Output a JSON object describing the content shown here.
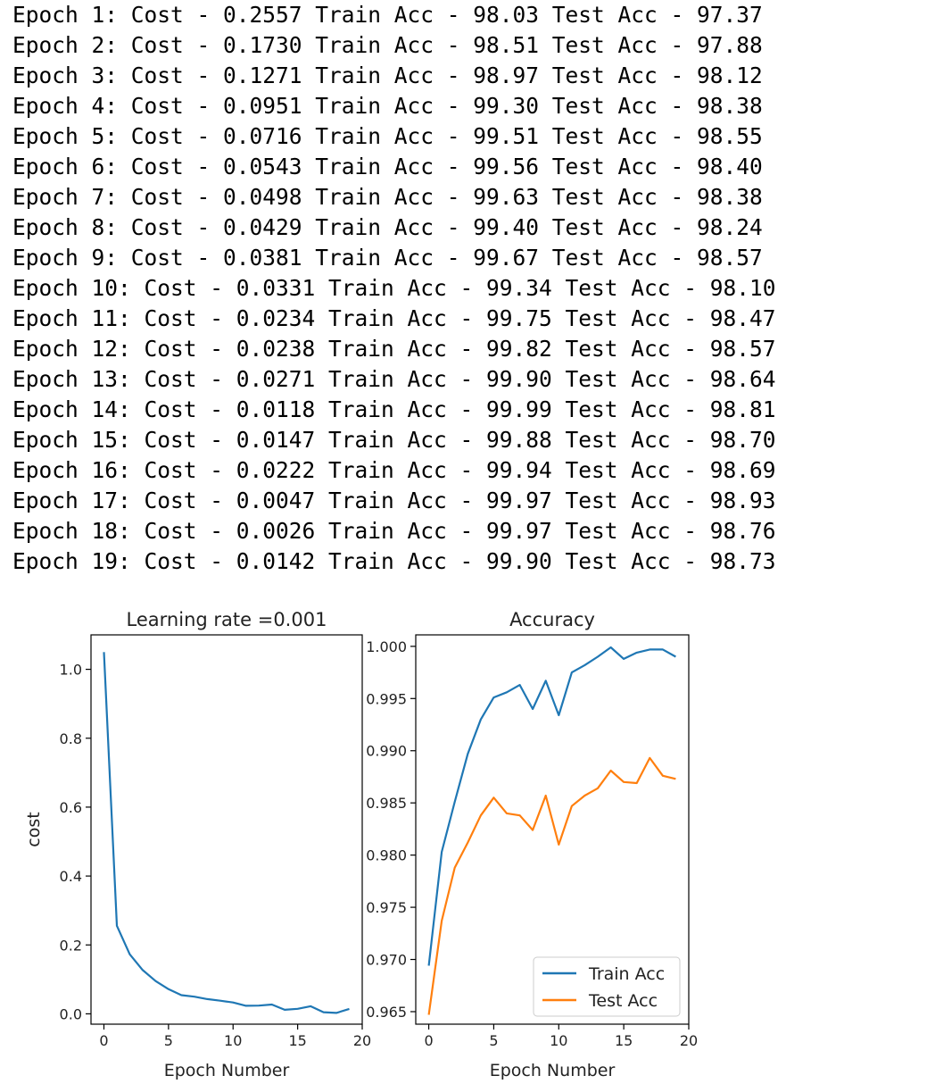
{
  "log": {
    "lines": [
      "Epoch 1: Cost - 0.2557 Train Acc - 98.03 Test Acc - 97.37",
      "Epoch 2: Cost - 0.1730 Train Acc - 98.51 Test Acc - 97.88",
      "Epoch 3: Cost - 0.1271 Train Acc - 98.97 Test Acc - 98.12",
      "Epoch 4: Cost - 0.0951 Train Acc - 99.30 Test Acc - 98.38",
      "Epoch 5: Cost - 0.0716 Train Acc - 99.51 Test Acc - 98.55",
      "Epoch 6: Cost - 0.0543 Train Acc - 99.56 Test Acc - 98.40",
      "Epoch 7: Cost - 0.0498 Train Acc - 99.63 Test Acc - 98.38",
      "Epoch 8: Cost - 0.0429 Train Acc - 99.40 Test Acc - 98.24",
      "Epoch 9: Cost - 0.0381 Train Acc - 99.67 Test Acc - 98.57",
      "Epoch 10: Cost - 0.0331 Train Acc - 99.34 Test Acc - 98.10",
      "Epoch 11: Cost - 0.0234 Train Acc - 99.75 Test Acc - 98.47",
      "Epoch 12: Cost - 0.0238 Train Acc - 99.82 Test Acc - 98.57",
      "Epoch 13: Cost - 0.0271 Train Acc - 99.90 Test Acc - 98.64",
      "Epoch 14: Cost - 0.0118 Train Acc - 99.99 Test Acc - 98.81",
      "Epoch 15: Cost - 0.0147 Train Acc - 99.88 Test Acc - 98.70",
      "Epoch 16: Cost - 0.0222 Train Acc - 99.94 Test Acc - 98.69",
      "Epoch 17: Cost - 0.0047 Train Acc - 99.97 Test Acc - 98.93",
      "Epoch 18: Cost - 0.0026 Train Acc - 99.97 Test Acc - 98.76",
      "Epoch 19: Cost - 0.0142 Train Acc - 99.90 Test Acc - 98.73"
    ]
  },
  "chart_data": [
    {
      "type": "line",
      "title": "Learning rate =0.001",
      "xlabel": "Epoch Number",
      "ylabel": "cost",
      "xlim": [
        -1.0,
        20
      ],
      "ylim": [
        -0.03,
        1.1
      ],
      "xticks": [
        0,
        5,
        10,
        15,
        20
      ],
      "yticks": [
        0.0,
        0.2,
        0.4,
        0.6,
        0.8,
        1.0
      ],
      "ytick_labels": [
        "0.0",
        "0.2",
        "0.4",
        "0.6",
        "0.8",
        "1.0"
      ],
      "grid": false,
      "series": [
        {
          "color": "#1f77b4",
          "x": [
            0,
            1,
            2,
            3,
            4,
            5,
            6,
            7,
            8,
            9,
            10,
            11,
            12,
            13,
            14,
            15,
            16,
            17,
            18,
            19
          ],
          "y": [
            1.05,
            0.2557,
            0.173,
            0.1271,
            0.0951,
            0.0716,
            0.0543,
            0.0498,
            0.0429,
            0.0381,
            0.0331,
            0.0234,
            0.0238,
            0.0271,
            0.0118,
            0.0147,
            0.0222,
            0.0047,
            0.0026,
            0.0142
          ]
        }
      ]
    },
    {
      "type": "line",
      "title": "Accuracy",
      "xlabel": "Epoch Number",
      "ylabel": "",
      "xlim": [
        -1.0,
        20
      ],
      "ylim": [
        0.9638,
        1.0011
      ],
      "xticks": [
        0,
        5,
        10,
        15,
        20
      ],
      "yticks": [
        0.965,
        0.97,
        0.975,
        0.98,
        0.985,
        0.99,
        0.995,
        1.0
      ],
      "ytick_labels": [
        "0.965",
        "0.970",
        "0.975",
        "0.980",
        "0.985",
        "0.990",
        "0.995",
        "1.000"
      ],
      "grid": false,
      "legend_position": "lower-right",
      "series": [
        {
          "name": "Train Acc",
          "color": "#1f77b4",
          "x": [
            0,
            1,
            2,
            3,
            4,
            5,
            6,
            7,
            8,
            9,
            10,
            11,
            12,
            13,
            14,
            15,
            16,
            17,
            18,
            19
          ],
          "y": [
            0.9694,
            0.9803,
            0.9851,
            0.9897,
            0.993,
            0.9951,
            0.9956,
            0.9963,
            0.994,
            0.9967,
            0.9934,
            0.9975,
            0.9982,
            0.999,
            0.9999,
            0.9988,
            0.9994,
            0.9997,
            0.9997,
            0.999
          ]
        },
        {
          "name": "Test Acc",
          "color": "#ff7f0e",
          "x": [
            0,
            1,
            2,
            3,
            4,
            5,
            6,
            7,
            8,
            9,
            10,
            11,
            12,
            13,
            14,
            15,
            16,
            17,
            18,
            19
          ],
          "y": [
            0.9647,
            0.9737,
            0.9788,
            0.9812,
            0.9838,
            0.9855,
            0.984,
            0.9838,
            0.9824,
            0.9857,
            0.981,
            0.9847,
            0.9857,
            0.9864,
            0.9881,
            0.987,
            0.9869,
            0.9893,
            0.9876,
            0.9873
          ]
        }
      ]
    }
  ]
}
